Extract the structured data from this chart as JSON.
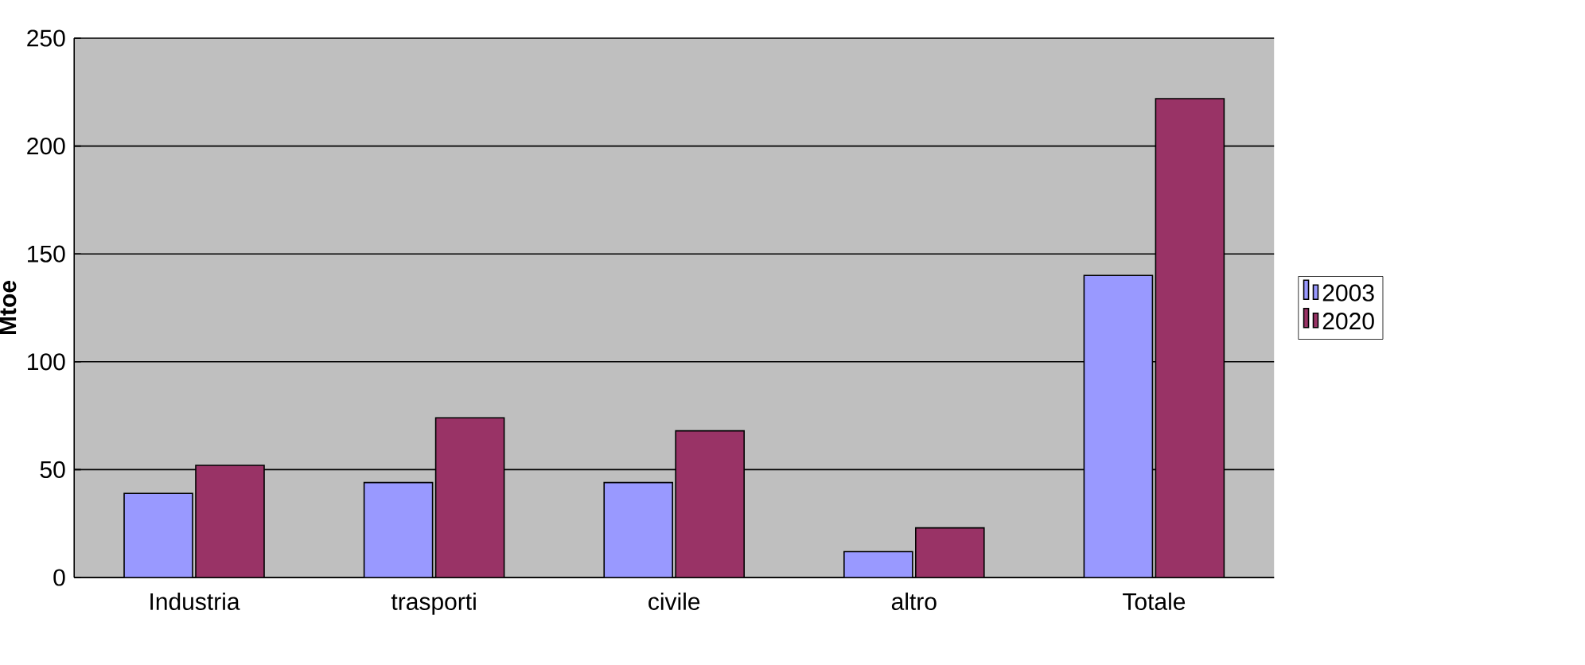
{
  "chart_data": {
    "type": "bar",
    "ylabel": "Mtoe",
    "categories": [
      "Industria",
      "trasporti",
      "civile",
      "altro",
      "Totale"
    ],
    "series": [
      {
        "name": "2003",
        "color": "#9999ff",
        "values": [
          39,
          44,
          44,
          12,
          140
        ]
      },
      {
        "name": "2020",
        "color": "#993366",
        "values": [
          52,
          74,
          68,
          23,
          222
        ]
      }
    ],
    "ylim": [
      0,
      250
    ],
    "yticks": [
      0,
      50,
      100,
      150,
      200,
      250
    ],
    "grid": "y",
    "legend": "right"
  }
}
